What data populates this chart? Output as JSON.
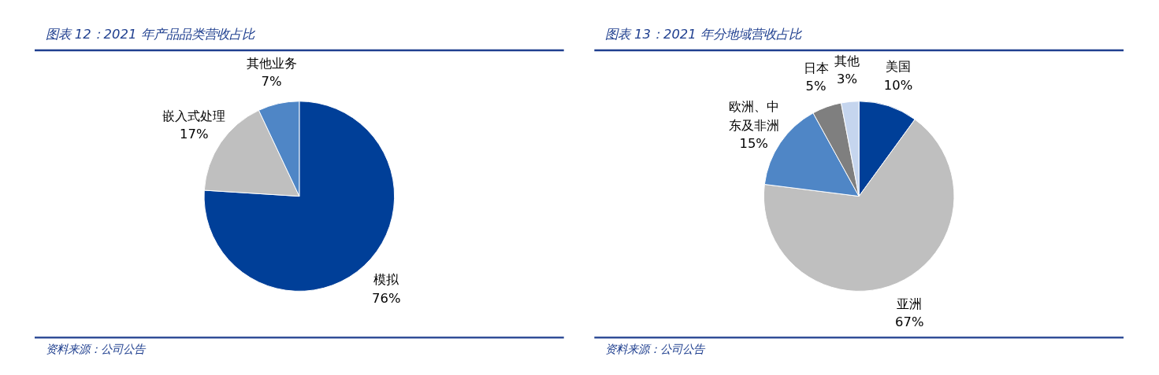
{
  "chart_data": [
    {
      "type": "pie",
      "title": "图表 12：2021 年产品品类营收占比",
      "categories": [
        "模拟",
        "嵌入式处理",
        "其他业务"
      ],
      "values": [
        76,
        17,
        7
      ],
      "colors": [
        "#003f98",
        "#bfbfbf",
        "#4f86c6"
      ],
      "value_labels": [
        "76%",
        "17%",
        "7%"
      ],
      "annotations": [
        "资料来源：公司公告"
      ]
    },
    {
      "type": "pie",
      "title": "图表 13：2021 年分地域营收占比",
      "categories": [
        "美国",
        "亚洲",
        "欧洲、中东及非洲",
        "日本",
        "其他"
      ],
      "values": [
        10,
        67,
        15,
        5,
        3
      ],
      "colors": [
        "#003f98",
        "#bfbfbf",
        "#4f86c6",
        "#7f7f7f",
        "#c5d5ee"
      ],
      "value_labels": [
        "10%",
        "67%",
        "15%",
        "5%",
        "3%"
      ],
      "annotations": [
        "资料来源：公司公告"
      ]
    }
  ]
}
